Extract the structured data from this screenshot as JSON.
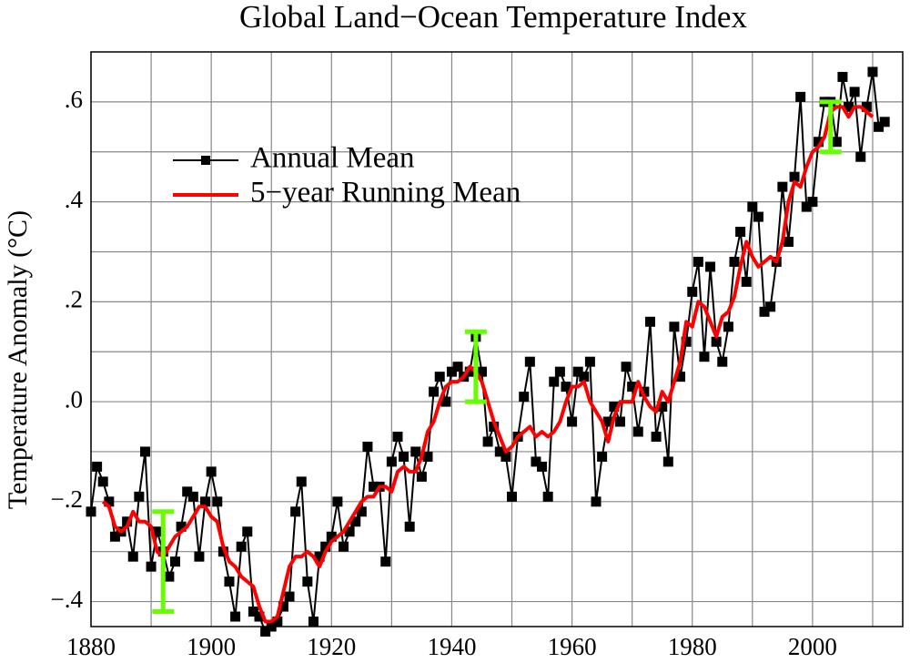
{
  "chart_data": {
    "type": "line",
    "title": "Global Land−Ocean Temperature Index",
    "y_label": "Temperature Anomaly (°C)",
    "xlim": [
      1880,
      2015
    ],
    "ylim": [
      -0.45,
      0.7
    ],
    "xticks": [
      1880,
      1900,
      1920,
      1940,
      1960,
      1980,
      2000
    ],
    "x_minor_ticks": [
      1890,
      1910,
      1930,
      1950,
      1970,
      1990,
      2010
    ],
    "yticks": [
      {
        "value": -0.4,
        "label": "−.4"
      },
      {
        "value": -0.2,
        "label": "−.2"
      },
      {
        "value": 0,
        "label": ".0"
      },
      {
        "value": 0.2,
        "label": ".2"
      },
      {
        "value": 0.4,
        "label": ".4"
      },
      {
        "value": 0.6,
        "label": ".6"
      }
    ],
    "y_minor_ticks": [
      -0.3,
      -0.1,
      0.1,
      0.3,
      0.5
    ],
    "grid": true,
    "legend": "upper left",
    "series": [
      {
        "name": "Annual Mean",
        "color": "#000000",
        "marker": "square",
        "x": [
          1880,
          1881,
          1882,
          1883,
          1884,
          1885,
          1886,
          1887,
          1888,
          1889,
          1890,
          1891,
          1892,
          1893,
          1894,
          1895,
          1896,
          1897,
          1898,
          1899,
          1900,
          1901,
          1902,
          1903,
          1904,
          1905,
          1906,
          1907,
          1908,
          1909,
          1910,
          1911,
          1912,
          1913,
          1914,
          1915,
          1916,
          1917,
          1918,
          1919,
          1920,
          1921,
          1922,
          1923,
          1924,
          1925,
          1926,
          1927,
          1928,
          1929,
          1930,
          1931,
          1932,
          1933,
          1934,
          1935,
          1936,
          1937,
          1938,
          1939,
          1940,
          1941,
          1942,
          1943,
          1944,
          1945,
          1946,
          1947,
          1948,
          1949,
          1950,
          1951,
          1952,
          1953,
          1954,
          1955,
          1956,
          1957,
          1958,
          1959,
          1960,
          1961,
          1962,
          1963,
          1964,
          1965,
          1966,
          1967,
          1968,
          1969,
          1970,
          1971,
          1972,
          1973,
          1974,
          1975,
          1976,
          1977,
          1978,
          1979,
          1980,
          1981,
          1982,
          1983,
          1984,
          1985,
          1986,
          1987,
          1988,
          1989,
          1990,
          1991,
          1992,
          1993,
          1994,
          1995,
          1996,
          1997,
          1998,
          1999,
          2000,
          2001,
          2002,
          2003,
          2004,
          2005,
          2006,
          2007,
          2008,
          2009,
          2010,
          2011,
          2012
        ],
        "values": [
          -0.22,
          -0.13,
          -0.16,
          -0.2,
          -0.27,
          -0.26,
          -0.24,
          -0.31,
          -0.19,
          -0.1,
          -0.33,
          -0.26,
          -0.3,
          -0.35,
          -0.32,
          -0.25,
          -0.18,
          -0.19,
          -0.31,
          -0.2,
          -0.14,
          -0.2,
          -0.3,
          -0.36,
          -0.43,
          -0.29,
          -0.26,
          -0.42,
          -0.43,
          -0.46,
          -0.45,
          -0.44,
          -0.41,
          -0.39,
          -0.22,
          -0.16,
          -0.36,
          -0.44,
          -0.31,
          -0.29,
          -0.27,
          -0.2,
          -0.29,
          -0.26,
          -0.24,
          -0.22,
          -0.09,
          -0.17,
          -0.17,
          -0.32,
          -0.12,
          -0.07,
          -0.11,
          -0.25,
          -0.1,
          -0.15,
          -0.11,
          0.02,
          0.05,
          0.0,
          0.06,
          0.07,
          0.05,
          0.06,
          0.13,
          0.06,
          -0.08,
          -0.05,
          -0.1,
          -0.11,
          -0.19,
          -0.07,
          0.01,
          0.08,
          -0.12,
          -0.13,
          -0.19,
          0.04,
          0.06,
          0.03,
          -0.04,
          0.06,
          0.05,
          0.08,
          -0.2,
          -0.11,
          -0.04,
          -0.01,
          -0.04,
          0.07,
          0.03,
          -0.06,
          0.02,
          0.16,
          -0.07,
          -0.01,
          -0.12,
          0.15,
          0.05,
          0.12,
          0.22,
          0.28,
          0.09,
          0.27,
          0.12,
          0.08,
          0.15,
          0.28,
          0.34,
          0.24,
          0.39,
          0.37,
          0.18,
          0.19,
          0.28,
          0.43,
          0.32,
          0.45,
          0.61,
          0.39,
          0.4,
          0.52,
          0.6,
          0.6,
          0.52,
          0.65,
          0.59,
          0.62,
          0.49,
          0.59,
          0.66,
          0.55,
          0.56
        ]
      },
      {
        "name": "5−year Running Mean",
        "color": "#ff0000",
        "x": [
          1882,
          1883,
          1884,
          1885,
          1886,
          1887,
          1888,
          1889,
          1890,
          1891,
          1892,
          1893,
          1894,
          1895,
          1896,
          1897,
          1898,
          1899,
          1900,
          1901,
          1902,
          1903,
          1904,
          1905,
          1906,
          1907,
          1908,
          1909,
          1910,
          1911,
          1912,
          1913,
          1914,
          1915,
          1916,
          1917,
          1918,
          1919,
          1920,
          1921,
          1922,
          1923,
          1924,
          1925,
          1926,
          1927,
          1928,
          1929,
          1930,
          1931,
          1932,
          1933,
          1934,
          1935,
          1936,
          1937,
          1938,
          1939,
          1940,
          1941,
          1942,
          1943,
          1944,
          1945,
          1946,
          1947,
          1948,
          1949,
          1950,
          1951,
          1952,
          1953,
          1954,
          1955,
          1956,
          1957,
          1958,
          1959,
          1960,
          1961,
          1962,
          1963,
          1964,
          1965,
          1966,
          1967,
          1968,
          1969,
          1970,
          1971,
          1972,
          1973,
          1974,
          1975,
          1976,
          1977,
          1978,
          1979,
          1980,
          1981,
          1982,
          1983,
          1984,
          1985,
          1986,
          1987,
          1988,
          1989,
          1990,
          1991,
          1992,
          1993,
          1994,
          1995,
          1996,
          1997,
          1998,
          1999,
          2000,
          2001,
          2002,
          2003,
          2004,
          2005,
          2006,
          2007,
          2008,
          2009,
          2010
        ],
        "values": [
          -0.2,
          -0.21,
          -0.25,
          -0.26,
          -0.25,
          -0.22,
          -0.24,
          -0.24,
          -0.25,
          -0.3,
          -0.31,
          -0.29,
          -0.27,
          -0.26,
          -0.25,
          -0.23,
          -0.21,
          -0.21,
          -0.23,
          -0.24,
          -0.29,
          -0.32,
          -0.33,
          -0.35,
          -0.36,
          -0.37,
          -0.41,
          -0.44,
          -0.44,
          -0.43,
          -0.38,
          -0.33,
          -0.31,
          -0.31,
          -0.3,
          -0.31,
          -0.33,
          -0.3,
          -0.28,
          -0.27,
          -0.26,
          -0.24,
          -0.22,
          -0.2,
          -0.19,
          -0.19,
          -0.17,
          -0.17,
          -0.18,
          -0.14,
          -0.13,
          -0.14,
          -0.14,
          -0.11,
          -0.06,
          -0.04,
          0.0,
          0.03,
          0.04,
          0.04,
          0.05,
          0.07,
          0.06,
          0.04,
          0.0,
          -0.04,
          -0.07,
          -0.1,
          -0.09,
          -0.07,
          -0.06,
          -0.05,
          -0.07,
          -0.06,
          -0.07,
          -0.06,
          -0.04,
          0.0,
          0.03,
          0.03,
          0.04,
          0.0,
          -0.02,
          -0.04,
          -0.08,
          -0.03,
          0.0,
          0.0,
          0.0,
          0.04,
          0.01,
          -0.01,
          -0.02,
          0.02,
          0.0,
          0.04,
          0.08,
          0.16,
          0.15,
          0.2,
          0.19,
          0.16,
          0.13,
          0.17,
          0.18,
          0.21,
          0.27,
          0.32,
          0.29,
          0.27,
          0.28,
          0.29,
          0.28,
          0.32,
          0.4,
          0.44,
          0.43,
          0.47,
          0.5,
          0.51,
          0.53,
          0.58,
          0.59,
          0.59,
          0.57,
          0.59,
          0.59,
          0.58,
          0.57
        ]
      }
    ],
    "error_bars": {
      "color": "#66ff00",
      "x": [
        1892,
        1944,
        2003
      ],
      "values": [
        -0.32,
        0.07,
        0.55
      ],
      "errors": [
        0.1,
        0.07,
        0.05
      ]
    }
  }
}
